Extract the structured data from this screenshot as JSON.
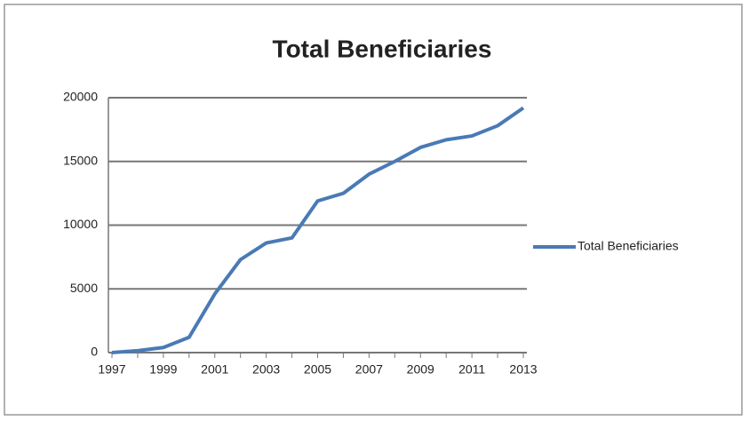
{
  "chart_data": {
    "type": "line",
    "title": "Total Beneficiaries",
    "categories": [
      "1997",
      null,
      "1999",
      null,
      "2001",
      null,
      "2003",
      null,
      "2005",
      null,
      "2007",
      null,
      "2009",
      null,
      "2011",
      null,
      "2013"
    ],
    "series": [
      {
        "name": "Total Beneficiaries",
        "color": "#4a7ab5",
        "values": [
          0,
          150,
          400,
          1200,
          4600,
          7300,
          8600,
          9000,
          11900,
          12500,
          14000,
          15000,
          16100,
          16700,
          17000,
          17800,
          19200
        ]
      }
    ],
    "ylim": [
      0,
      20000
    ],
    "yticks": [
      0,
      5000,
      10000,
      15000,
      20000
    ],
    "grid": true,
    "legend": "right"
  }
}
